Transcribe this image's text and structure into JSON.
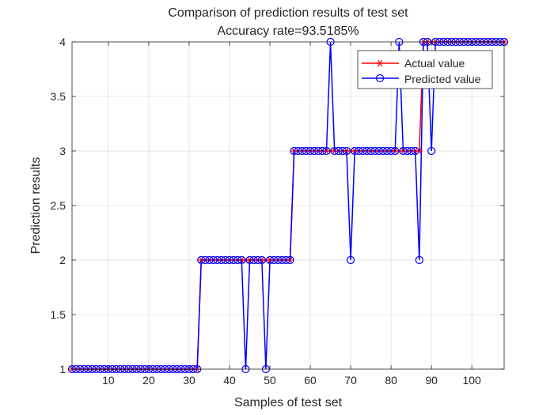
{
  "chart_data": {
    "type": "line",
    "title": "Comparison of prediction results of test set",
    "subtitle": "Accuracy rate=93.5185%",
    "xlabel": "Samples of test set",
    "ylabel": "Prediction results",
    "xlim": [
      1,
      108
    ],
    "ylim": [
      1,
      4
    ],
    "xticks": [
      10,
      20,
      30,
      40,
      50,
      60,
      70,
      80,
      90,
      100
    ],
    "yticks": [
      1,
      1.5,
      2,
      2.5,
      3,
      3.5,
      4
    ],
    "xtick_labels": [
      "10",
      "20",
      "30",
      "40",
      "50",
      "60",
      "70",
      "80",
      "90",
      "100"
    ],
    "ytick_labels": [
      "1",
      "1.5",
      "2",
      "2.5",
      "3",
      "3.5",
      "4"
    ],
    "grid": true,
    "legend_position": "top-right",
    "series": [
      {
        "name": "Actual value",
        "color": "#ff0000",
        "marker": "asterisk",
        "values": [
          1,
          1,
          1,
          1,
          1,
          1,
          1,
          1,
          1,
          1,
          1,
          1,
          1,
          1,
          1,
          1,
          1,
          1,
          1,
          1,
          1,
          1,
          1,
          1,
          1,
          1,
          1,
          1,
          1,
          1,
          1,
          1,
          2,
          2,
          2,
          2,
          2,
          2,
          2,
          2,
          2,
          2,
          2,
          2,
          2,
          2,
          2,
          2,
          2,
          2,
          2,
          2,
          2,
          2,
          2,
          3,
          3,
          3,
          3,
          3,
          3,
          3,
          3,
          3,
          3,
          3,
          3,
          3,
          3,
          3,
          3,
          3,
          3,
          3,
          3,
          3,
          3,
          3,
          3,
          3,
          3,
          3,
          3,
          3,
          3,
          3,
          3,
          4,
          4,
          4,
          4,
          4,
          4,
          4,
          4,
          4,
          4,
          4,
          4,
          4,
          4,
          4,
          4,
          4,
          4,
          4,
          4,
          4
        ]
      },
      {
        "name": "Predicted value",
        "color": "#0000ff",
        "marker": "circle",
        "values": [
          1,
          1,
          1,
          1,
          1,
          1,
          1,
          1,
          1,
          1,
          1,
          1,
          1,
          1,
          1,
          1,
          1,
          1,
          1,
          1,
          1,
          1,
          1,
          1,
          1,
          1,
          1,
          1,
          1,
          1,
          1,
          1,
          2,
          2,
          2,
          2,
          2,
          2,
          2,
          2,
          2,
          2,
          2,
          1,
          2,
          2,
          2,
          2,
          1,
          2,
          2,
          2,
          2,
          2,
          2,
          3,
          3,
          3,
          3,
          3,
          3,
          3,
          3,
          3,
          4,
          3,
          3,
          3,
          3,
          2,
          3,
          3,
          3,
          3,
          3,
          3,
          3,
          3,
          3,
          3,
          3,
          4,
          3,
          3,
          3,
          3,
          2,
          4,
          4,
          3,
          4,
          4,
          4,
          4,
          4,
          4,
          4,
          4,
          4,
          4,
          4,
          4,
          4,
          4,
          4,
          4,
          4,
          4
        ]
      }
    ]
  }
}
